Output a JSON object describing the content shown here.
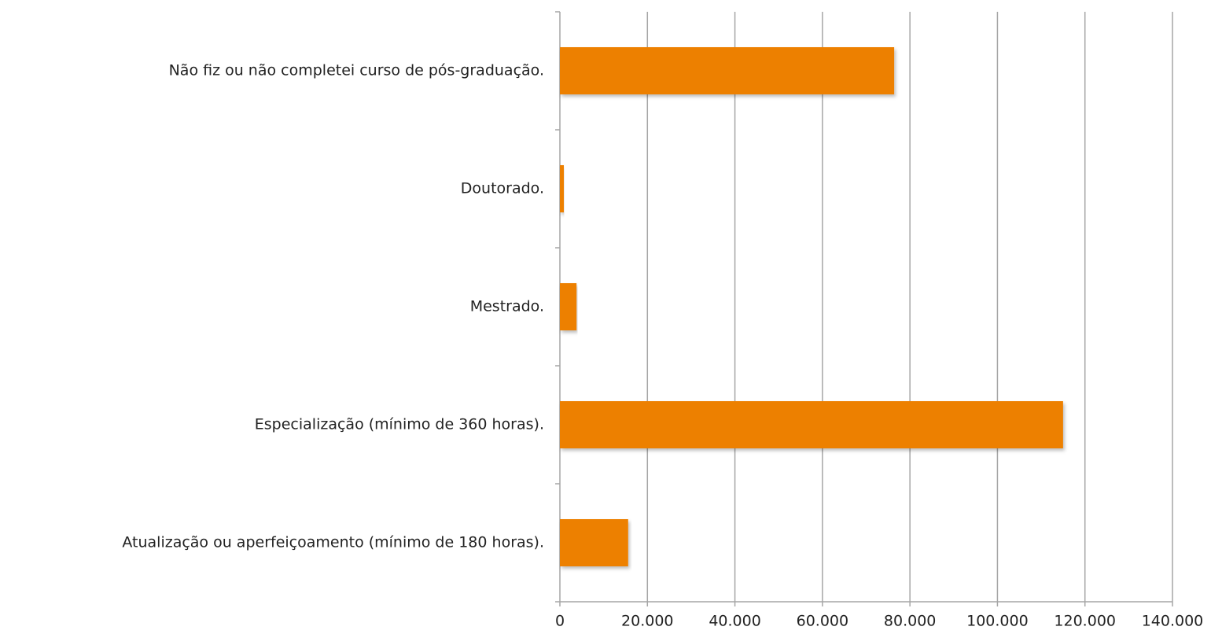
{
  "chart_data": {
    "type": "bar",
    "orientation": "horizontal",
    "categories": [
      "Não fiz ou não completei curso de pós-graduação.",
      "Doutorado.",
      "Mestrado.",
      "Especialização (mínimo de 360 horas).",
      "Atualização ou aperfeiçoamento (mínimo de 180 horas)."
    ],
    "values": [
      76400,
      900,
      3800,
      115000,
      15600
    ],
    "color": "#ed8000",
    "xlim": [
      0,
      140000
    ],
    "xticks": [
      0,
      {
        "value": 20000,
        "label": "20.000"
      },
      {
        "value": 40000,
        "label": "40.000"
      },
      {
        "value": 60000,
        "label": "60.000"
      },
      {
        "value": 80000,
        "label": "80.000"
      },
      {
        "value": 100000,
        "label": "100.000"
      },
      {
        "value": 120000,
        "label": "120.000"
      },
      {
        "value": 140000,
        "label": "140.000"
      }
    ],
    "grid": true
  }
}
